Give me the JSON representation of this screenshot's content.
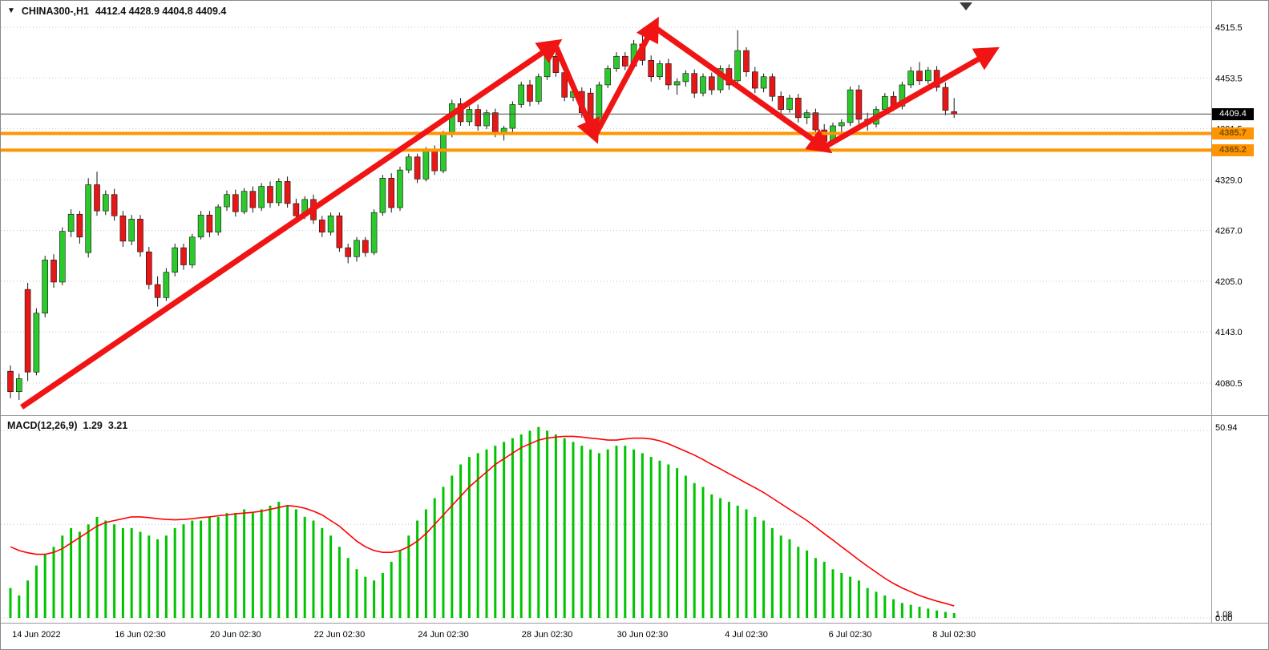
{
  "header": {
    "dropdown_icon": "▼",
    "symbol_period": "CHINA300-,H1",
    "ohlc": "4412.4 4428.9 4404.8 4409.4"
  },
  "colors": {
    "bull": "#2bc92b",
    "bear": "#e81717",
    "wick": "#151515",
    "grid": "#c6c6c6",
    "hline": "#ff9500",
    "arrow": "#f01414",
    "macd_hist": "#00c400",
    "macd_signal": "#ff0000",
    "price_line": "#4a4a4a",
    "axis_text": "#000000"
  },
  "chart_data": [
    {
      "type": "candlestick",
      "title": "CHINA300-,H1",
      "timeframe": "H1",
      "ohlc_current": {
        "open": 4412.4,
        "high": 4428.9,
        "low": 4404.8,
        "close": 4409.4
      },
      "current_price": 4409.4,
      "current_price_label": "4409.4",
      "y_tick_prices": [
        4515.5,
        4453.5,
        4391.5,
        4329.0,
        4267.0,
        4205.0,
        4143.0,
        4080.5
      ],
      "ylim": [
        4042,
        4548
      ],
      "hlines": [
        4385.7,
        4365.2
      ],
      "hline_labels": [
        "4385.7",
        "4365.2"
      ],
      "x_labels": [
        {
          "index": 3,
          "label": "14 Jun 2022"
        },
        {
          "index": 15,
          "label": "16 Jun 02:30"
        },
        {
          "index": 26,
          "label": "20 Jun 02:30"
        },
        {
          "index": 38,
          "label": "22 Jun 02:30"
        },
        {
          "index": 50,
          "label": "24 Jun 02:30"
        },
        {
          "index": 62,
          "label": "28 Jun 02:30"
        },
        {
          "index": 73,
          "label": "30 Jun 02:30"
        },
        {
          "index": 85,
          "label": "4 Jul 02:30"
        },
        {
          "index": 97,
          "label": "6 Jul 02:30"
        },
        {
          "index": 109,
          "label": "8 Jul 02:30"
        }
      ],
      "candles": [
        [
          4095,
          4102,
          4062,
          4070
        ],
        [
          4070,
          4092,
          4060,
          4086
        ],
        [
          4195,
          4203,
          4083,
          4094
        ],
        [
          4094,
          4172,
          4090,
          4166
        ],
        [
          4166,
          4236,
          4161,
          4231
        ],
        [
          4231,
          4238,
          4197,
          4204
        ],
        [
          4204,
          4271,
          4200,
          4266
        ],
        [
          4266,
          4293,
          4259,
          4287
        ],
        [
          4287,
          4291,
          4251,
          4259
        ],
        [
          4240,
          4331,
          4234,
          4323
        ],
        [
          4323,
          4339,
          4285,
          4291
        ],
        [
          4291,
          4316,
          4286,
          4311
        ],
        [
          4311,
          4318,
          4279,
          4285
        ],
        [
          4285,
          4291,
          4247,
          4254
        ],
        [
          4254,
          4286,
          4249,
          4281
        ],
        [
          4281,
          4286,
          4235,
          4241
        ],
        [
          4241,
          4247,
          4195,
          4201
        ],
        [
          4201,
          4211,
          4174,
          4185
        ],
        [
          4185,
          4221,
          4181,
          4216
        ],
        [
          4216,
          4251,
          4211,
          4246
        ],
        [
          4246,
          4251,
          4219,
          4225
        ],
        [
          4225,
          4263,
          4221,
          4259
        ],
        [
          4259,
          4291,
          4256,
          4286
        ],
        [
          4286,
          4291,
          4259,
          4265
        ],
        [
          4265,
          4299,
          4261,
          4296
        ],
        [
          4296,
          4316,
          4291,
          4311
        ],
        [
          4311,
          4317,
          4284,
          4290
        ],
        [
          4290,
          4319,
          4287,
          4315
        ],
        [
          4315,
          4321,
          4289,
          4295
        ],
        [
          4295,
          4325,
          4291,
          4321
        ],
        [
          4321,
          4327,
          4295,
          4301
        ],
        [
          4301,
          4331,
          4297,
          4327
        ],
        [
          4327,
          4333,
          4295,
          4300
        ],
        [
          4300,
          4306,
          4279,
          4285
        ],
        [
          4285,
          4309,
          4281,
          4305
        ],
        [
          4305,
          4311,
          4275,
          4280
        ],
        [
          4280,
          4285,
          4259,
          4265
        ],
        [
          4265,
          4289,
          4261,
          4285
        ],
        [
          4285,
          4289,
          4241,
          4246
        ],
        [
          4246,
          4251,
          4227,
          4235
        ],
        [
          4235,
          4259,
          4229,
          4255
        ],
        [
          4255,
          4259,
          4235,
          4240
        ],
        [
          4240,
          4293,
          4237,
          4289
        ],
        [
          4289,
          4335,
          4285,
          4331
        ],
        [
          4331,
          4337,
          4289,
          4295
        ],
        [
          4295,
          4345,
          4291,
          4341
        ],
        [
          4341,
          4361,
          4337,
          4357
        ],
        [
          4357,
          4361,
          4325,
          4330
        ],
        [
          4330,
          4369,
          4327,
          4365
        ],
        [
          4365,
          4371,
          4335,
          4340
        ],
        [
          4340,
          4389,
          4337,
          4385
        ],
        [
          4385,
          4427,
          4381,
          4422
        ],
        [
          4422,
          4429,
          4395,
          4400
        ],
        [
          4400,
          4419,
          4395,
          4415
        ],
        [
          4415,
          4421,
          4389,
          4395
        ],
        [
          4395,
          4415,
          4391,
          4411
        ],
        [
          4411,
          4416,
          4381,
          4387
        ],
        [
          4387,
          4395,
          4377,
          4392
        ],
        [
          4392,
          4425,
          4387,
          4421
        ],
        [
          4421,
          4449,
          4417,
          4445
        ],
        [
          4445,
          4451,
          4419,
          4425
        ],
        [
          4425,
          4459,
          4421,
          4455
        ],
        [
          4455,
          4485,
          4451,
          4480
        ],
        [
          4480,
          4491,
          4455,
          4460
        ],
        [
          4460,
          4465,
          4425,
          4430
        ],
        [
          4430,
          4441,
          4425,
          4437
        ],
        [
          4437,
          4442,
          4405,
          4411
        ],
        [
          4435,
          4441,
          4383,
          4393
        ],
        [
          4393,
          4449,
          4389,
          4445
        ],
        [
          4445,
          4469,
          4441,
          4465
        ],
        [
          4465,
          4485,
          4461,
          4480
        ],
        [
          4480,
          4485,
          4463,
          4468
        ],
        [
          4468,
          4500,
          4464,
          4495
        ],
        [
          4495,
          4507,
          4469,
          4475
        ],
        [
          4475,
          4481,
          4449,
          4455
        ],
        [
          4455,
          4475,
          4451,
          4471
        ],
        [
          4471,
          4477,
          4439,
          4445
        ],
        [
          4445,
          4453,
          4433,
          4449
        ],
        [
          4449,
          4463,
          4443,
          4459
        ],
        [
          4459,
          4464,
          4429,
          4435
        ],
        [
          4435,
          4459,
          4431,
          4455
        ],
        [
          4455,
          4460,
          4433,
          4439
        ],
        [
          4439,
          4469,
          4435,
          4465
        ],
        [
          4465,
          4470,
          4439,
          4445
        ],
        [
          4450,
          4512,
          4443,
          4487
        ],
        [
          4487,
          4491,
          4455,
          4461
        ],
        [
          4461,
          4467,
          4435,
          4441
        ],
        [
          4441,
          4459,
          4436,
          4455
        ],
        [
          4455,
          4459,
          4425,
          4431
        ],
        [
          4431,
          4437,
          4409,
          4415
        ],
        [
          4415,
          4433,
          4411,
          4429
        ],
        [
          4429,
          4434,
          4399,
          4405
        ],
        [
          4405,
          4415,
          4397,
          4411
        ],
        [
          4411,
          4416,
          4385,
          4390
        ],
        [
          4390,
          4397,
          4367,
          4376
        ],
        [
          4376,
          4399,
          4372,
          4395
        ],
        [
          4395,
          4403,
          4383,
          4399
        ],
        [
          4399,
          4443,
          4395,
          4439
        ],
        [
          4439,
          4445,
          4397,
          4403
        ],
        [
          4403,
          4411,
          4389,
          4397
        ],
        [
          4397,
          4419,
          4393,
          4415
        ],
        [
          4415,
          4435,
          4411,
          4431
        ],
        [
          4431,
          4437,
          4413,
          4419
        ],
        [
          4419,
          4449,
          4415,
          4445
        ],
        [
          4445,
          4467,
          4441,
          4462
        ],
        [
          4462,
          4473,
          4445,
          4450
        ],
        [
          4450,
          4467,
          4446,
          4463
        ],
        [
          4463,
          4468,
          4437,
          4442
        ],
        [
          4442,
          4448,
          4408,
          4414
        ],
        [
          4412.4,
          4428.9,
          4404.8,
          4409.4
        ]
      ],
      "trend_arrows": [
        [
          26,
          507,
          690,
          55
        ],
        [
          693,
          58,
          740,
          167
        ],
        [
          743,
          165,
          815,
          31
        ],
        [
          817,
          34,
          1027,
          183
        ],
        [
          1030,
          181,
          1235,
          64
        ]
      ]
    },
    {
      "type": "macd",
      "label": "MACD(12,26,9)",
      "values_display": [
        "1.29",
        "3.21"
      ],
      "current_main": 1.29,
      "current_signal": 3.21,
      "y_ticks": [
        {
          "value": 50.94,
          "label": "50.94"
        },
        {
          "value": 1.08,
          "label": "1.08"
        },
        {
          "value": 0.0,
          "label": "0.00"
        }
      ],
      "ylim": [
        0,
        53
      ],
      "histogram": [
        8,
        6,
        10,
        14,
        17,
        19,
        22,
        24,
        23,
        25,
        27,
        26,
        25,
        24,
        24,
        23,
        22,
        21,
        22,
        24,
        25,
        26,
        26,
        27,
        27,
        28,
        28,
        29,
        28,
        29,
        30,
        31,
        30,
        29,
        27,
        26,
        24,
        22,
        19,
        16,
        13,
        11,
        10,
        12,
        15,
        18,
        22,
        26,
        29,
        32,
        35,
        38,
        41,
        43,
        44,
        45,
        46,
        47,
        48,
        49,
        50,
        51,
        50,
        49,
        48,
        47,
        46,
        45,
        44,
        45,
        46,
        46,
        45,
        44,
        43,
        42,
        41,
        40,
        38,
        36,
        35,
        33,
        32,
        31,
        30,
        29,
        27,
        26,
        24,
        22,
        21,
        19,
        18,
        16,
        15,
        13,
        12,
        11,
        10,
        8,
        7,
        6,
        5,
        4,
        3.5,
        3,
        2.5,
        2,
        1.6,
        1.3
      ],
      "signal": [
        19,
        18,
        17.4,
        17,
        17,
        17.5,
        18.5,
        20,
        21.5,
        23,
        24.5,
        25.5,
        26,
        26.5,
        27,
        27,
        26.8,
        26.5,
        26.3,
        26.2,
        26.3,
        26.5,
        26.8,
        27,
        27.3,
        27.5,
        27.8,
        28,
        28.2,
        28.5,
        29,
        29.5,
        30,
        29.8,
        29.3,
        28.5,
        27.5,
        26,
        24.5,
        22.5,
        20.5,
        19,
        18,
        17.5,
        17.5,
        18,
        19,
        20.5,
        22.5,
        25,
        27.5,
        30,
        32.5,
        35,
        37,
        39,
        41,
        42.5,
        44,
        45.5,
        46.5,
        47.5,
        48,
        48.3,
        48.5,
        48.5,
        48.3,
        48,
        47.8,
        47.5,
        47.5,
        47.8,
        48,
        48,
        47.8,
        47.3,
        46.5,
        45.5,
        44.5,
        43.5,
        42.3,
        41,
        39.8,
        38.5,
        37.3,
        36,
        34.8,
        33.5,
        32,
        30.5,
        29,
        27.5,
        26,
        24.3,
        22.5,
        20.8,
        19,
        17.3,
        15.5,
        13.8,
        12.2,
        10.6,
        9.2,
        8,
        7,
        6,
        5.2,
        4.5,
        3.9,
        3.2
      ]
    }
  ]
}
